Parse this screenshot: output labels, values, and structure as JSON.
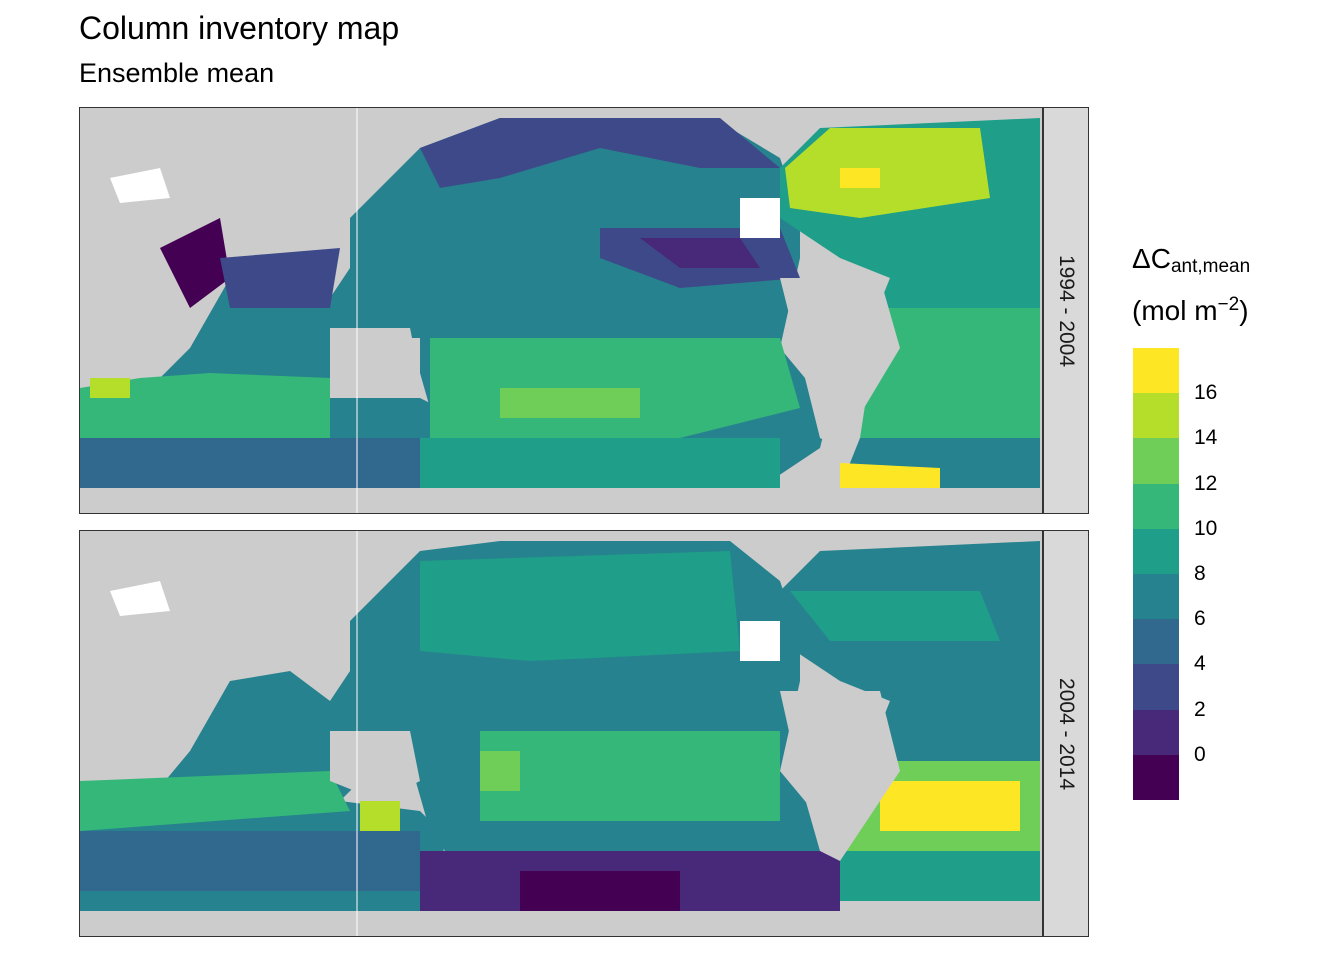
{
  "title": "Column inventory map",
  "subtitle": "Ensemble mean",
  "legend": {
    "title_main": "ΔC",
    "title_sub": "ant,mean",
    "unit_prefix": "(mol m",
    "unit_sup": "−2",
    "unit_suffix": ")",
    "ticks": [
      "16",
      "14",
      "12",
      "10",
      "8",
      "6",
      "4",
      "2",
      "0"
    ],
    "colors": [
      "#fde725",
      "#b5de2b",
      "#6ece58",
      "#35b779",
      "#1f9e89",
      "#26828e",
      "#31688e",
      "#3e4989",
      "#482878",
      "#440154"
    ]
  },
  "panels": [
    {
      "label": "1994 - 2004"
    },
    {
      "label": "2004 - 2014"
    }
  ],
  "colors": {
    "land": "#cccccc",
    "missing": "#ffffff"
  }
}
